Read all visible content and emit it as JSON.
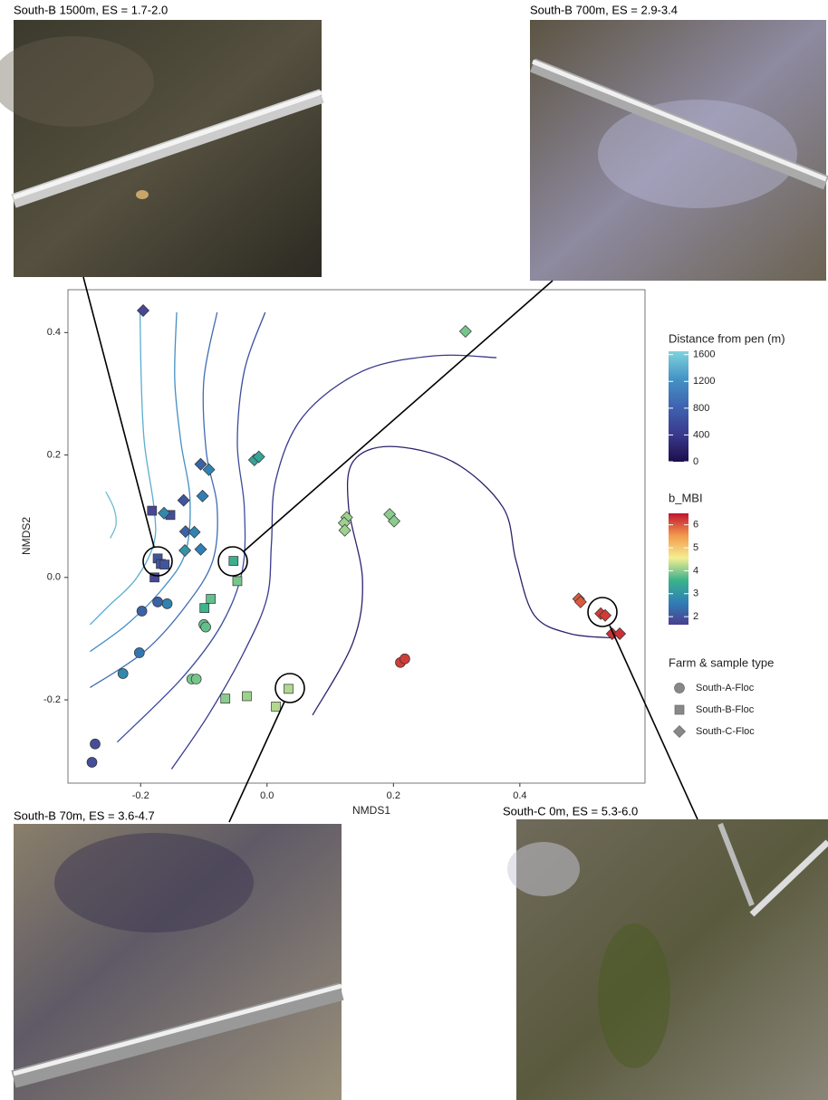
{
  "chart_data": {
    "type": "scatter",
    "xlabel": "NMDS1",
    "ylabel": "NMDS2",
    "xlim": [
      -0.315,
      0.598
    ],
    "ylim": [
      -0.336,
      0.47
    ],
    "xticks": [
      -0.2,
      {
        "value": 0,
        "label": "0.0"
      },
      0.2,
      0.4
    ],
    "yticks": [
      -0.2,
      {
        "value": 0,
        "label": "0.0"
      },
      0.2,
      0.4
    ],
    "series": [
      {
        "name": "South-A-Floc",
        "shape": "circle",
        "x": [
          -0.272,
          -0.277,
          -0.198,
          -0.202,
          -0.228,
          -0.173,
          -0.158,
          -0.1,
          -0.097,
          -0.119,
          -0.112,
          0.211,
          0.218
        ],
        "y": [
          -0.272,
          -0.302,
          -0.055,
          -0.123,
          -0.157,
          -0.04,
          -0.043,
          -0.077,
          -0.081,
          -0.166,
          -0.166,
          -0.139,
          -0.133
        ],
        "b_MBI": [
          1.9,
          1.9,
          2.2,
          2.5,
          2.8,
          2.2,
          2.7,
          3.8,
          3.8,
          3.9,
          3.9,
          6.2,
          6.2
        ]
      },
      {
        "name": "South-B-Floc",
        "shape": "square",
        "x": [
          -0.182,
          -0.153,
          -0.173,
          -0.168,
          -0.162,
          -0.178,
          -0.053,
          -0.047,
          -0.089,
          -0.099,
          -0.066,
          -0.032,
          0.014,
          0.034
        ],
        "y": [
          0.109,
          0.102,
          0.031,
          0.022,
          0.021,
          0.0,
          0.027,
          -0.006,
          -0.035,
          -0.05,
          -0.198,
          -0.194,
          -0.211,
          -0.182
        ],
        "b_MBI": [
          1.8,
          1.9,
          2.0,
          2.0,
          2.0,
          1.8,
          3.5,
          3.9,
          3.8,
          3.6,
          4.0,
          4.1,
          4.2,
          4.2
        ]
      },
      {
        "name": "South-C-Floc",
        "shape": "diamond",
        "x": [
          -0.196,
          -0.163,
          -0.129,
          -0.132,
          -0.115,
          -0.13,
          -0.105,
          -0.092,
          -0.102,
          -0.105,
          -0.02,
          -0.013,
          0.126,
          0.122,
          0.123,
          0.194,
          0.201,
          0.314,
          0.493,
          0.496,
          0.528,
          0.535,
          0.546,
          0.558
        ],
        "y": [
          0.436,
          0.105,
          0.075,
          0.126,
          0.074,
          0.044,
          0.185,
          0.176,
          0.133,
          0.046,
          0.192,
          0.197,
          0.098,
          0.089,
          0.077,
          0.103,
          0.092,
          0.402,
          -0.035,
          -0.04,
          -0.059,
          -0.062,
          -0.092,
          -0.092
        ],
        "b_MBI": [
          1.8,
          2.8,
          2.2,
          2.0,
          2.7,
          3.0,
          2.2,
          2.7,
          2.6,
          2.6,
          3.3,
          3.3,
          4.1,
          4.1,
          4.1,
          4.0,
          4.0,
          3.9,
          6.0,
          6.0,
          6.2,
          6.2,
          6.3,
          6.3
        ]
      }
    ],
    "contours": [
      {
        "level": 1500,
        "x": [
          -0.255,
          -0.242,
          -0.239,
          -0.248
        ],
        "y": [
          0.14,
          0.112,
          0.086,
          0.064
        ]
      },
      {
        "level": 1400,
        "x": [
          -0.201,
          -0.199,
          -0.194,
          -0.179,
          -0.179,
          -0.208,
          -0.251,
          -0.28
        ],
        "y": [
          0.44,
          0.322,
          0.219,
          0.115,
          0.056,
          -0.003,
          -0.047,
          -0.077
        ]
      },
      {
        "level": 1200,
        "x": [
          -0.143,
          -0.146,
          -0.136,
          -0.122,
          -0.129,
          -0.165,
          -0.222,
          -0.28
        ],
        "y": [
          0.433,
          0.322,
          0.219,
          0.13,
          0.041,
          -0.018,
          -0.077,
          -0.121
        ]
      },
      {
        "level": 900,
        "x": [
          -0.079,
          -0.1,
          -0.096,
          -0.079,
          -0.086,
          -0.129,
          -0.194,
          -0.28
        ],
        "y": [
          0.433,
          0.322,
          0.204,
          0.115,
          0.027,
          -0.047,
          -0.121,
          -0.18
        ]
      },
      {
        "level": 600,
        "x": [
          -0.003,
          -0.036,
          -0.047,
          -0.036,
          -0.039,
          -0.072,
          -0.136,
          -0.237
        ],
        "y": [
          0.433,
          0.337,
          0.219,
          0.115,
          0.012,
          -0.077,
          -0.166,
          -0.269
        ]
      },
      {
        "level": 400,
        "x": [
          0.363,
          0.265,
          0.151,
          0.057,
          0.014,
          0.007,
          0,
          -0.036,
          -0.093,
          -0.151
        ],
        "y": [
          0.359,
          0.362,
          0.337,
          0.263,
          0.16,
          0.056,
          -0.033,
          -0.121,
          -0.225,
          -0.313
        ]
      },
      {
        "level": 200,
        "x": [
          0.072,
          0.136,
          0.151,
          0.129,
          0.136,
          0.194,
          0.294,
          0.373,
          0.394,
          0.423,
          0.48,
          0.552
        ],
        "y": [
          -0.225,
          -0.106,
          -0.003,
          0.115,
          0.189,
          0.214,
          0.189,
          0.115,
          0.027,
          -0.062,
          -0.092,
          -0.099
        ]
      }
    ],
    "distance_colorbar": {
      "title": "Distance from pen (m)",
      "lim": [
        0,
        1650
      ],
      "ticks": [
        0,
        400,
        800,
        1200,
        1600
      ],
      "colors": [
        "#1d0e4b",
        "#3a3a8e",
        "#3f63b0",
        "#4493c6",
        "#7fd3dc"
      ]
    },
    "mbi_colorbar": {
      "title": "b_MBI",
      "lim": [
        1.65,
        6.5
      ],
      "ticks": [
        2,
        3,
        4,
        5,
        6
      ],
      "colors": [
        "#4b3d8f",
        "#2f7fb5",
        "#3bb38a",
        "#f5ee91",
        "#f39a4d",
        "#c0142f"
      ]
    },
    "shape_legend_title": "Farm & sample type"
  },
  "photos": [
    {
      "caption": "South-B 1500m, ES = 1.7-2.0"
    },
    {
      "caption": "South-B 700m, ES = 2.9-3.4"
    },
    {
      "caption": "South-B 70m, ES = 3.6-4.7"
    },
    {
      "caption": "South-C 0m, ES = 5.3-6.0"
    }
  ]
}
